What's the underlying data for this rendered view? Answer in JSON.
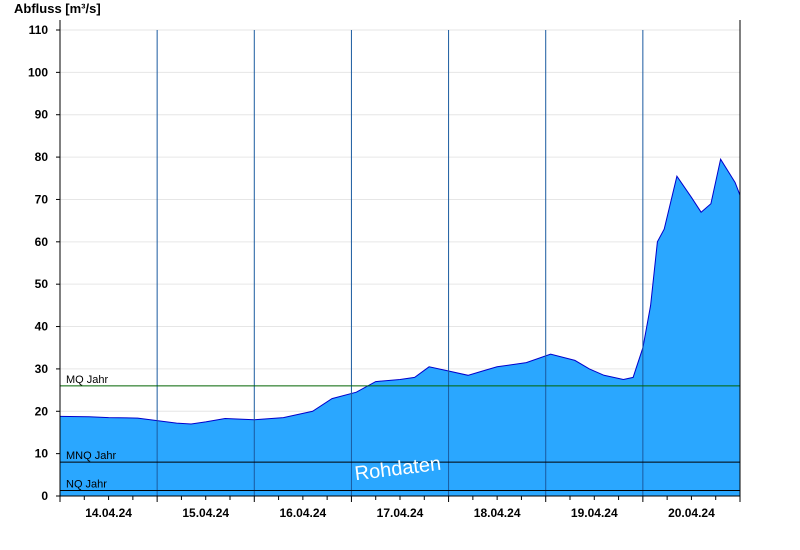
{
  "chart_data": {
    "type": "area",
    "ylabel": "Abfluss [m³/s]",
    "ylim": [
      0,
      110
    ],
    "yticks": [
      0,
      10,
      20,
      30,
      40,
      50,
      60,
      70,
      80,
      90,
      100,
      110
    ],
    "xlim": [
      13.5,
      20.5
    ],
    "day_ticks": [
      {
        "x": 14,
        "label": "14.04.24"
      },
      {
        "x": 15,
        "label": "15.04.24"
      },
      {
        "x": 16,
        "label": "16.04.24"
      },
      {
        "x": 17,
        "label": "17.04.24"
      },
      {
        "x": 18,
        "label": "18.04.24"
      },
      {
        "x": 19,
        "label": "19.04.24"
      },
      {
        "x": 20,
        "label": "20.04.24"
      }
    ],
    "grid": true,
    "reference_lines": [
      {
        "label": "MQ Jahr",
        "value": 26,
        "color": "#006400"
      },
      {
        "label": "MNQ Jahr",
        "value": 8,
        "color": "#000000"
      },
      {
        "label": "NQ Jahr",
        "value": 1.3,
        "color": "#000000"
      }
    ],
    "watermark": "Rohdaten",
    "fill_color": "#2aa7ff",
    "line_color": "#0000cc",
    "series": [
      {
        "x": [
          13.5,
          13.8,
          14.0,
          14.3,
          14.7,
          14.85,
          15.0,
          15.2,
          15.5,
          15.8,
          16.1,
          16.3,
          16.55,
          16.75,
          17.0,
          17.15,
          17.3,
          17.5,
          17.7,
          17.85,
          18.0,
          18.3,
          18.55,
          18.8,
          18.95,
          19.1,
          19.3,
          19.4,
          19.5,
          19.58,
          19.65,
          19.72,
          19.85,
          20.0,
          20.1,
          20.2,
          20.3,
          20.45,
          20.5
        ],
        "y": [
          18.8,
          18.7,
          18.5,
          18.4,
          17.2,
          17.0,
          17.5,
          18.3,
          18.0,
          18.5,
          20.0,
          23.0,
          24.5,
          27.0,
          27.5,
          28.0,
          30.5,
          29.5,
          28.5,
          29.5,
          30.5,
          31.5,
          33.5,
          32.0,
          30.0,
          28.5,
          27.5,
          28.0,
          35.0,
          45.0,
          60.0,
          63.0,
          75.5,
          70.5,
          67.0,
          69.0,
          79.5,
          74.0,
          71.0
        ]
      }
    ]
  }
}
